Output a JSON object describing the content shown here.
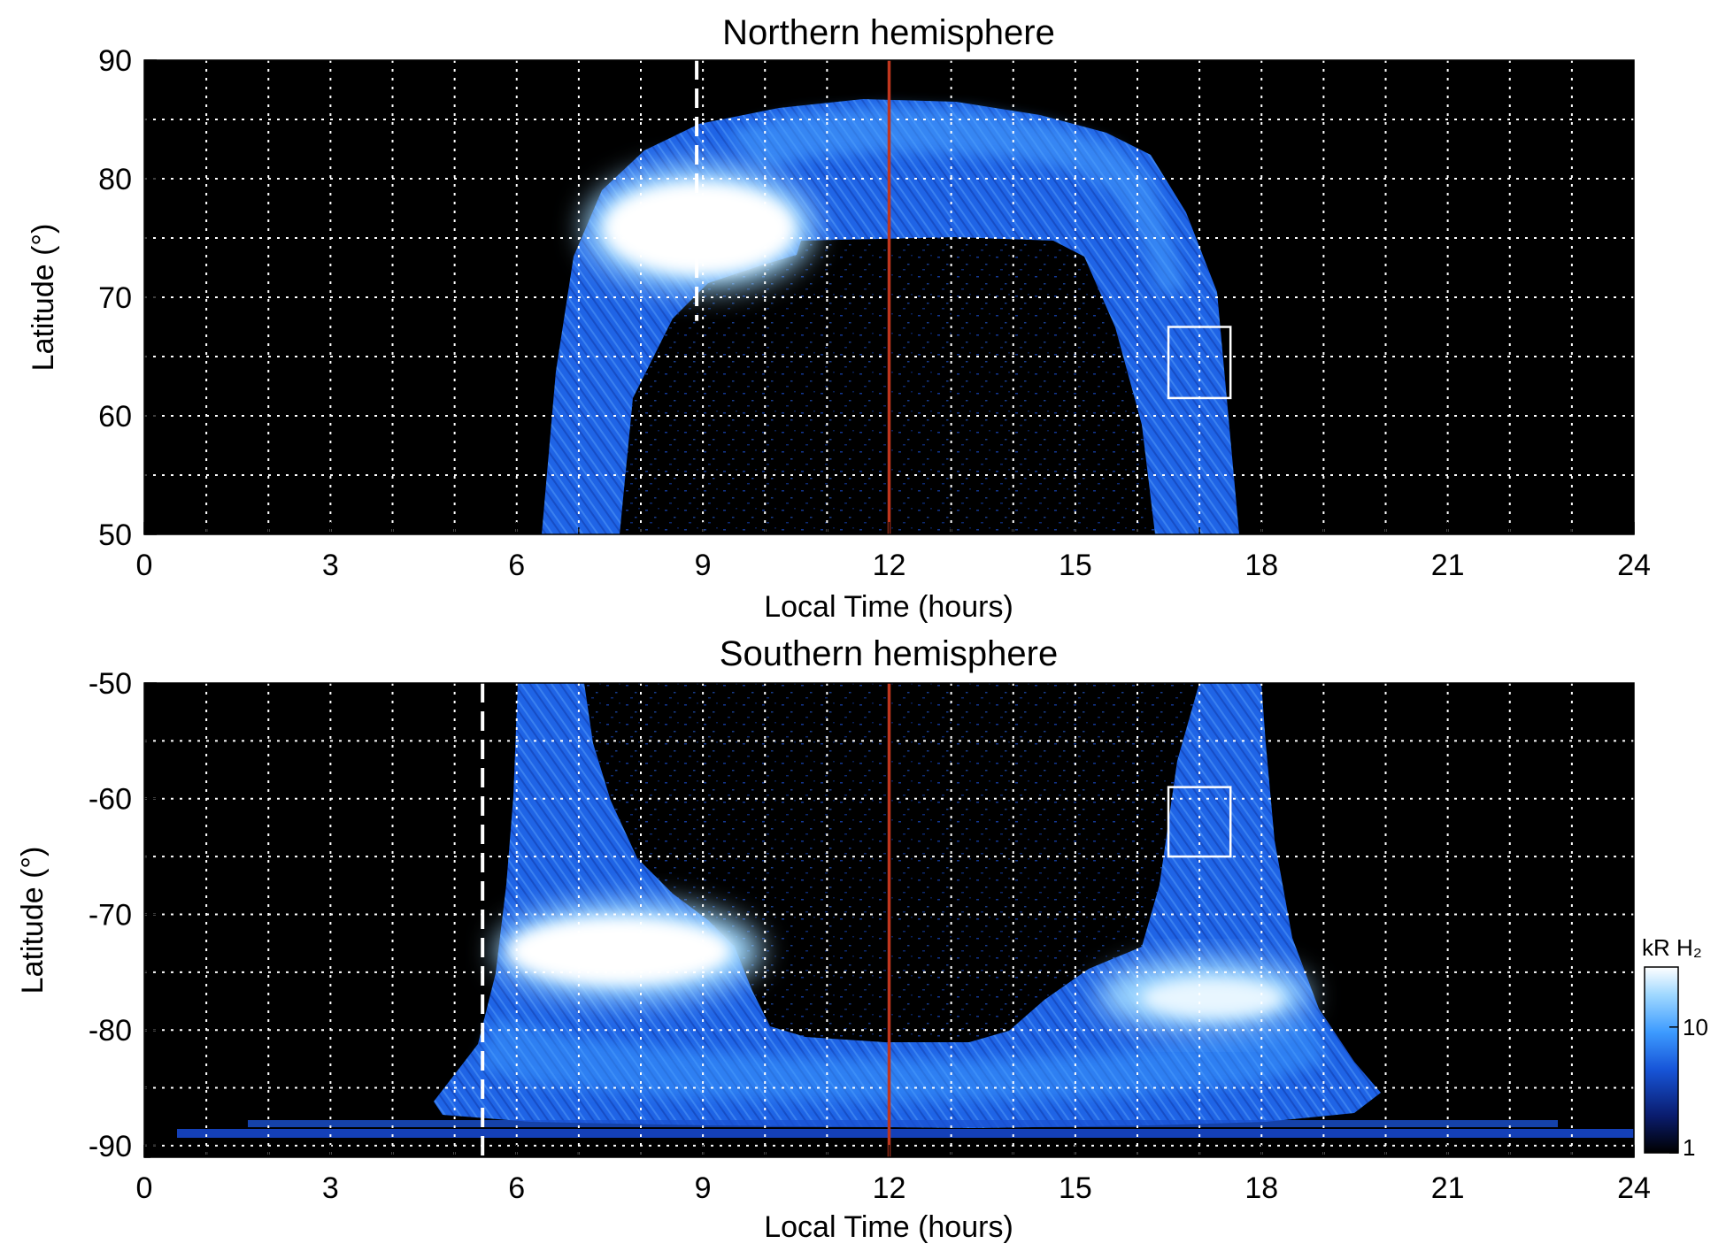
{
  "chart_data": [
    {
      "type": "heatmap",
      "title": "Northern hemisphere",
      "xlabel": "Local Time (hours)",
      "ylabel": "Latitude (°)",
      "xlim": [
        0,
        24
      ],
      "ylim": [
        50,
        90
      ],
      "xticks": [
        "0",
        "3",
        "6",
        "9",
        "12",
        "15",
        "18",
        "21",
        "24"
      ],
      "yticks": [
        "50",
        "60",
        "70",
        "80",
        "90"
      ],
      "grid": true,
      "reference_lines": [
        {
          "style": "solid",
          "color": "#c0361e",
          "x": 12
        },
        {
          "style": "dashed",
          "color": "#ffffff",
          "x": 8.9,
          "y_range": [
            68,
            90
          ]
        }
      ],
      "box": {
        "x": [
          16.5,
          17.5
        ],
        "y": [
          61.5,
          67.5
        ]
      },
      "auroral_oval": {
        "latitude_equatorward_edge": 50,
        "latitude_poleward_edge": 86,
        "local_time_range": [
          6.5,
          17.6
        ]
      },
      "bright_spot": {
        "local_time": [
          7.5,
          10.5
        ],
        "latitude": [
          68,
          79
        ],
        "intensity_kR": 30
      }
    },
    {
      "type": "heatmap",
      "title": "Southern hemisphere",
      "xlabel": "Local Time (hours)",
      "ylabel": "Latitude (°)",
      "xlim": [
        0,
        24
      ],
      "ylim": [
        -91,
        -50
      ],
      "xticks": [
        "0",
        "3",
        "6",
        "9",
        "12",
        "15",
        "18",
        "21",
        "24"
      ],
      "yticks": [
        "-50",
        "-60",
        "-70",
        "-80",
        "-90"
      ],
      "grid": true,
      "reference_lines": [
        {
          "style": "solid",
          "color": "#c0361e",
          "x": 12
        },
        {
          "style": "dashed",
          "color": "#ffffff",
          "x": 5.45,
          "y_range": [
            -91,
            -50
          ]
        }
      ],
      "box": {
        "x": [
          16.5,
          17.5
        ],
        "y": [
          -65,
          -59
        ]
      },
      "auroral_oval": {
        "latitude_equatorward_edge": -50,
        "latitude_poleward_edge": -89,
        "local_time_range": [
          5.0,
          19.5
        ]
      },
      "bright_spots": [
        {
          "local_time": [
            5.8,
            9.8
          ],
          "latitude": [
            -76,
            -70
          ],
          "intensity_kR": 30
        },
        {
          "local_time": [
            15.5,
            18.5
          ],
          "latitude": [
            -80,
            -75
          ],
          "intensity_kR": 20
        }
      ]
    }
  ],
  "colorbar": {
    "label": "kR H₂",
    "scale": "log",
    "range": [
      1,
      30
    ],
    "ticks": [
      "1",
      "10"
    ],
    "colors": [
      "#000000",
      "#0a1c6e",
      "#1755d8",
      "#3d9bff",
      "#9fd8ff",
      "#ffffff"
    ]
  }
}
